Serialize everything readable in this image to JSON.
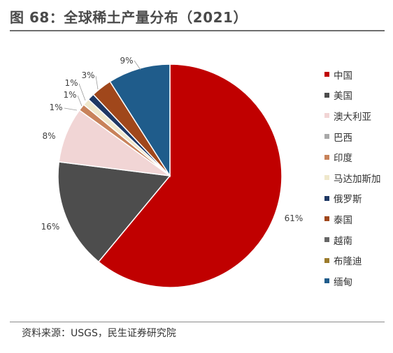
{
  "header": {
    "title": "图 68：全球稀土产量分布（2021）"
  },
  "footer": {
    "source": "资料来源：USGS，民生证券研究院"
  },
  "chart_data": {
    "type": "pie",
    "title": "图 68：全球稀土产量分布（2021）",
    "legend_position": "right",
    "slices": [
      {
        "name": "中国",
        "value": 61,
        "label": "61%",
        "color": "#c00000"
      },
      {
        "name": "美国",
        "value": 16,
        "label": "16%",
        "color": "#4d4d4d"
      },
      {
        "name": "澳大利亚",
        "value": 8,
        "label": "8%",
        "color": "#f1d5d5"
      },
      {
        "name": "巴西",
        "value": 0,
        "label": "",
        "color": "#a9a9a9"
      },
      {
        "name": "印度",
        "value": 1,
        "label": "1%",
        "color": "#c8825a"
      },
      {
        "name": "马达加斯加",
        "value": 1,
        "label": "1%",
        "color": "#efe8cc"
      },
      {
        "name": "俄罗斯",
        "value": 1,
        "label": "1%",
        "color": "#1f3864"
      },
      {
        "name": "泰国",
        "value": 3,
        "label": "3%",
        "color": "#a0471b"
      },
      {
        "name": "越南",
        "value": 0,
        "label": "",
        "color": "#666666"
      },
      {
        "name": "布隆迪",
        "value": 0,
        "label": "",
        "color": "#9c7b2c"
      },
      {
        "name": "缅甸",
        "value": 9,
        "label": "9%",
        "color": "#1f5c8b"
      }
    ]
  }
}
